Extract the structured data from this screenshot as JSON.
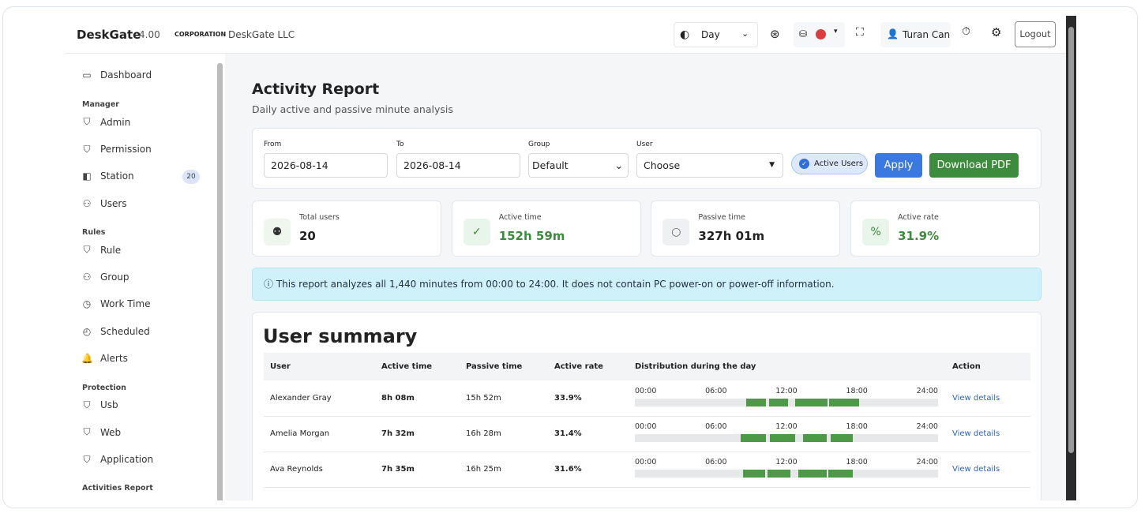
{
  "header": {
    "brand": "DeskGate",
    "version": "4.00",
    "corp_label": "CORPORATION",
    "corp_name": "DeskGate LLC",
    "period": "Day",
    "user": "Turan Can",
    "logout": "Logout"
  },
  "sidebar": {
    "top": "Dashboard",
    "sections": [
      {
        "title": "Manager",
        "items": [
          {
            "label": "Admin"
          },
          {
            "label": "Permission"
          },
          {
            "label": "Station",
            "badge": "20"
          },
          {
            "label": "Users"
          }
        ]
      },
      {
        "title": "Rules",
        "items": [
          {
            "label": "Rule"
          },
          {
            "label": "Group"
          },
          {
            "label": "Work Time"
          },
          {
            "label": "Scheduled"
          },
          {
            "label": "Alerts"
          }
        ]
      },
      {
        "title": "Protection",
        "items": [
          {
            "label": "Usb"
          },
          {
            "label": "Web"
          },
          {
            "label": "Application"
          }
        ]
      },
      {
        "title": "Activities Report",
        "items": []
      }
    ]
  },
  "page": {
    "title": "Activity Report",
    "subtitle": "Daily active and passive minute analysis"
  },
  "filters": {
    "from_label": "From",
    "from": "2026-08-14",
    "to_label": "To",
    "to": "2026-08-14",
    "group_label": "Group",
    "group": "Default",
    "user_label": "User",
    "user": "Choose",
    "active_users": "Active Users",
    "apply": "Apply",
    "download": "Download PDF"
  },
  "stats": [
    {
      "label": "Total users",
      "value": "20"
    },
    {
      "label": "Active time",
      "value": "152h 59m"
    },
    {
      "label": "Passive time",
      "value": "327h 01m"
    },
    {
      "label": "Active rate",
      "value": "31.9%"
    }
  ],
  "notice": "ⓘ This report analyzes all 1,440 minutes from 00:00 to 24:00. It does not contain PC power-on or power-off information.",
  "table": {
    "title": "User summary",
    "columns": [
      "User",
      "Active time",
      "Passive time",
      "Active rate",
      "Distribution during the day",
      "Action"
    ],
    "distribution_ticks": [
      "00:00",
      "06:00",
      "12:00",
      "18:00",
      "24:00"
    ],
    "rows": [
      {
        "user": "Alexander Gray",
        "active": "8h 08m",
        "passive": "15h 52m",
        "rate": "33.9%",
        "action": "View details",
        "segments": [
          [
            8.8,
            10.4
          ],
          [
            10.6,
            12.1
          ],
          [
            12.7,
            15.25
          ],
          [
            15.4,
            17.75
          ]
        ]
      },
      {
        "user": "Amelia Morgan",
        "active": "7h 32m",
        "passive": "16h 28m",
        "rate": "31.4%",
        "action": "View details",
        "segments": [
          [
            8.4,
            10.4
          ],
          [
            10.7,
            12.7
          ],
          [
            13.3,
            15.2
          ],
          [
            15.5,
            17.25
          ]
        ]
      },
      {
        "user": "Ava Reynolds",
        "active": "7h 35m",
        "passive": "16h 25m",
        "rate": "31.6%",
        "action": "View details",
        "segments": [
          [
            8.55,
            10.3
          ],
          [
            10.5,
            12.3
          ],
          [
            12.95,
            15.2
          ],
          [
            15.3,
            17.25
          ]
        ]
      }
    ]
  }
}
